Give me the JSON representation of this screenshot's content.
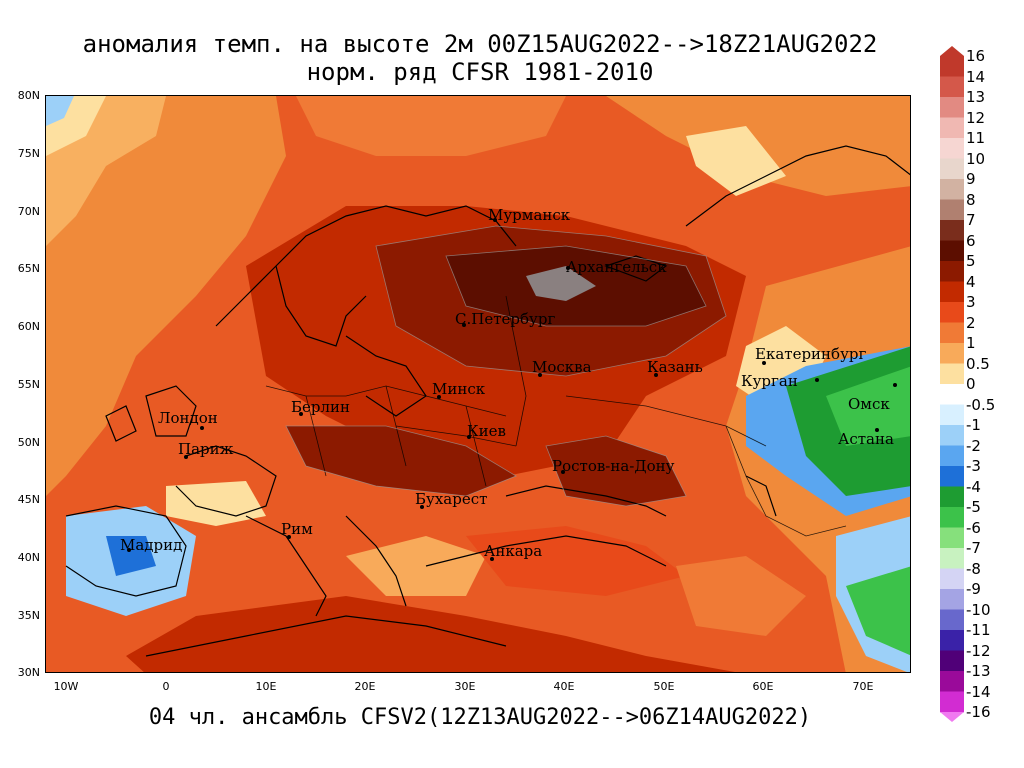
{
  "map": {
    "title_line1": "аномалия темп. на высоте 2м 00Z15AUG2022-->18Z21AUG2022",
    "title_line2": "норм. ряд CFSR 1981-2010",
    "subtitle": "04 чл. ансамбль CFSV2(12Z13AUG2022-->06Z14AUG2022)",
    "lat_labels": [
      "80N",
      "75N",
      "70N",
      "65N",
      "60N",
      "55N",
      "50N",
      "45N",
      "40N",
      "35N",
      "30N"
    ],
    "lon_labels": [
      "10W",
      "0",
      "10E",
      "20E",
      "30E",
      "40E",
      "50E",
      "60E",
      "70E"
    ],
    "cities": [
      {
        "name": "Мурманск"
      },
      {
        "name": "Архангельск"
      },
      {
        "name": "С.Петербург"
      },
      {
        "name": "Москва"
      },
      {
        "name": "Казань"
      },
      {
        "name": "Екатеринбург"
      },
      {
        "name": "Курган"
      },
      {
        "name": "Омск"
      },
      {
        "name": "Астана"
      },
      {
        "name": "Минск"
      },
      {
        "name": "Киев"
      },
      {
        "name": "Берлин"
      },
      {
        "name": "Лондон"
      },
      {
        "name": "Париж"
      },
      {
        "name": "Ростов-на-Дону"
      },
      {
        "name": "Бухарест"
      },
      {
        "name": "Рим"
      },
      {
        "name": "Мадрид"
      },
      {
        "name": "Анкара"
      }
    ]
  },
  "colorbar": {
    "levels": [
      "16",
      "14",
      "13",
      "12",
      "11",
      "10",
      "9",
      "8",
      "7",
      "6",
      "5",
      "4",
      "3",
      "2",
      "1",
      "0.5",
      "0",
      "-0.5",
      "-1",
      "-2",
      "-3",
      "-4",
      "-5",
      "-6",
      "-7",
      "-8",
      "-9",
      "-10",
      "-11",
      "-12",
      "-13",
      "-14",
      "-16"
    ],
    "colors": [
      "#c0392b",
      "#d4584a",
      "#e28a82",
      "#f0b8b2",
      "#f6d6d2",
      "#e8d6cc",
      "#d2b2a2",
      "#b08070",
      "#7a2d1c",
      "#5c0e00",
      "#8c1a00",
      "#c22a00",
      "#e84a1a",
      "#f07a36",
      "#f8aa5a",
      "#fde0a0",
      "#ffffff",
      "#d8f0ff",
      "#9cd0f8",
      "#5aa6f0",
      "#1e70d8",
      "#1e9c32",
      "#3cc24a",
      "#86e07c",
      "#c8f2c0",
      "#d4d4f4",
      "#a4a4e4",
      "#6868cc",
      "#3a22a8",
      "#500078",
      "#9a0a9a",
      "#d22cd2",
      "#f07af0"
    ]
  }
}
